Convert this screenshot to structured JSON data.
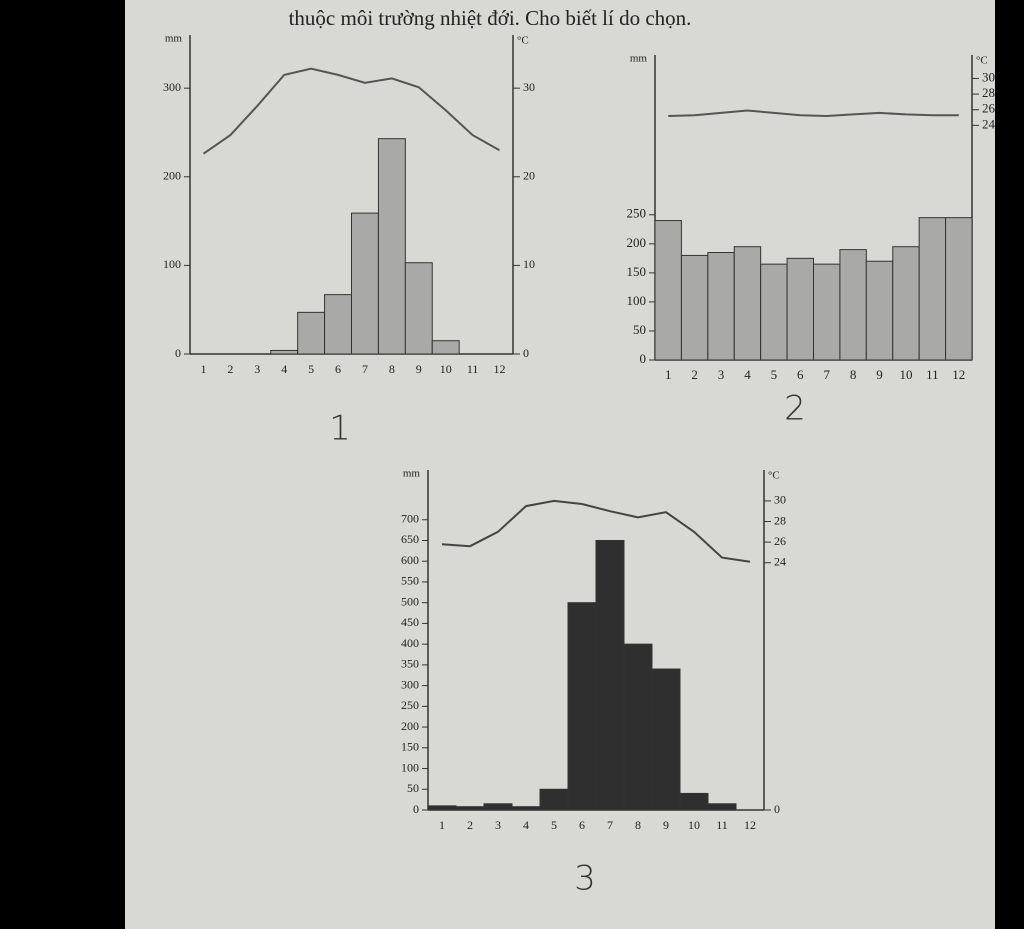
{
  "header": "thuộc môi trường nhiệt đới. Cho biết lí do chọn.",
  "chart_data": [
    {
      "type": "bar",
      "title": "1",
      "y_label": "mm",
      "y2_label": "°C",
      "categories": [
        "1",
        "2",
        "3",
        "4",
        "5",
        "6",
        "7",
        "8",
        "9",
        "10",
        "11",
        "12"
      ],
      "ylim": [
        0,
        360
      ],
      "yticks": [
        0,
        100,
        200,
        300
      ],
      "y2lim": [
        0,
        36
      ],
      "y2ticks": [
        0,
        10,
        20,
        30
      ],
      "series": [
        {
          "type": "bar",
          "color": "#a9a9a7",
          "values": [
            0,
            0,
            0,
            4,
            47,
            67,
            159,
            243,
            103,
            15,
            0,
            0
          ]
        },
        {
          "type": "line",
          "axis": "y2",
          "color": "#555555",
          "values": [
            22.6,
            24.7,
            28,
            31.5,
            32.2,
            31.5,
            30.6,
            31.1,
            30.1,
            27.5,
            24.7,
            23
          ]
        }
      ]
    },
    {
      "type": "bar",
      "title": "2",
      "y_label": "mm",
      "y2_label": "°C",
      "categories": [
        "1",
        "2",
        "3",
        "4",
        "5",
        "6",
        "7",
        "8",
        "9",
        "10",
        "11",
        "12"
      ],
      "ylim": [
        0,
        525
      ],
      "yticks": [
        0,
        50,
        100,
        150,
        200,
        250
      ],
      "y2lim": [
        -6,
        33
      ],
      "y2ticks": [
        24,
        26,
        28,
        30
      ],
      "series": [
        {
          "type": "bar",
          "color": "#a9a9a7",
          "values": [
            240,
            180,
            185,
            195,
            165,
            175,
            165,
            190,
            170,
            195,
            245,
            245
          ]
        },
        {
          "type": "line",
          "axis": "y2",
          "color": "#555555",
          "values": [
            25.2,
            25.3,
            25.6,
            25.9,
            25.6,
            25.3,
            25.2,
            25.4,
            25.6,
            25.4,
            25.3,
            25.3
          ]
        }
      ]
    },
    {
      "type": "bar",
      "title": "3",
      "y_label": "mm",
      "y2_label": "°C",
      "categories": [
        "1",
        "2",
        "3",
        "4",
        "5",
        "6",
        "7",
        "8",
        "9",
        "10",
        "11",
        "12"
      ],
      "ylim": [
        0,
        820
      ],
      "yticks": [
        0,
        50,
        100,
        150,
        200,
        250,
        300,
        350,
        400,
        450,
        500,
        550,
        600,
        650,
        700
      ],
      "y2lim": [
        0,
        33
      ],
      "y2ticks": [
        0,
        24,
        26,
        28,
        30
      ],
      "series": [
        {
          "type": "bar",
          "color": "#2f2f2f",
          "values": [
            10,
            8,
            15,
            8,
            50,
            500,
            650,
            400,
            340,
            40,
            15,
            0
          ]
        },
        {
          "type": "line",
          "axis": "y2",
          "color": "#444444",
          "values": [
            25.8,
            25.6,
            27,
            29.5,
            30,
            29.7,
            29,
            28.4,
            28.9,
            27,
            24.5,
            24.1
          ]
        }
      ]
    }
  ]
}
